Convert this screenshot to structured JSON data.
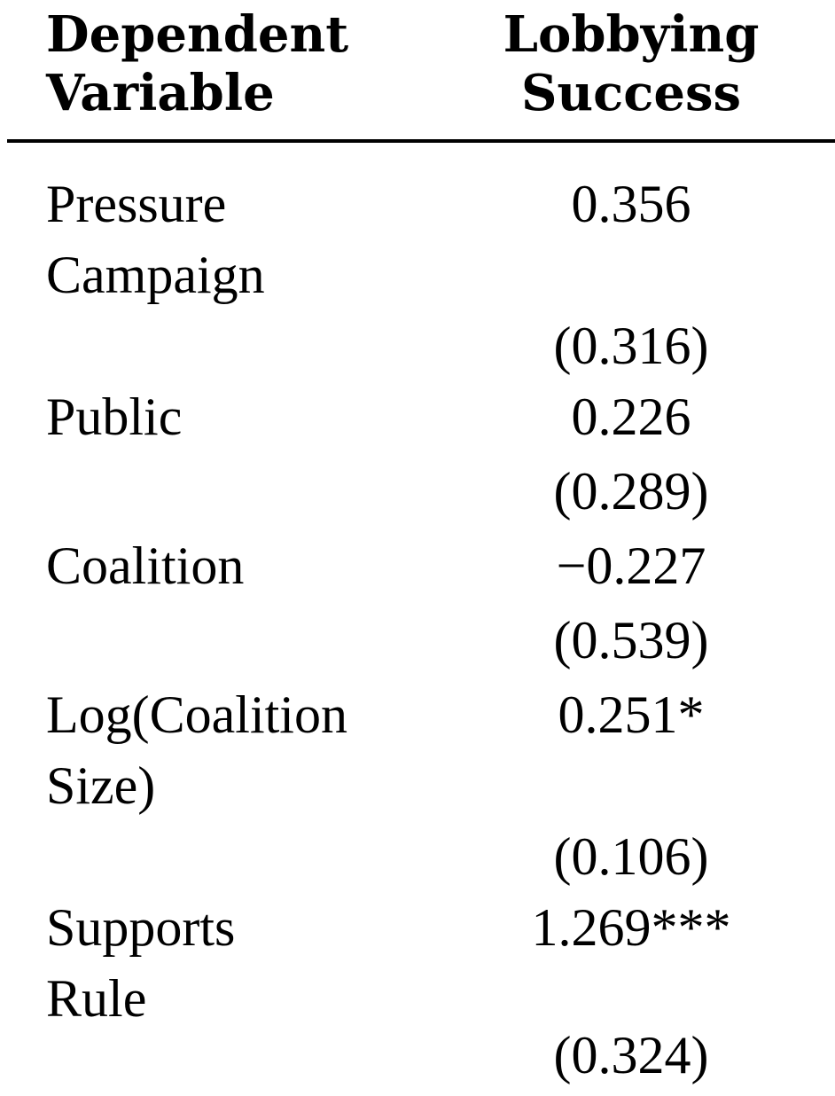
{
  "header": {
    "left_line1": "Dependent",
    "left_line2": "Variable",
    "right_line1": "Lobbying",
    "right_line2": "Success"
  },
  "rows": [
    {
      "label": "Pressure",
      "value": "0.356"
    },
    {
      "label": "Campaign",
      "value": ""
    },
    {
      "label": "",
      "value": "(0.316)"
    },
    {
      "label": "Public",
      "value": "0.226"
    },
    {
      "label": "",
      "value": "(0.289)"
    },
    {
      "label": "Coalition",
      "value": "−0.227"
    },
    {
      "label": "",
      "value": "(0.539)"
    },
    {
      "label": "Log(Coalition",
      "value": "0.251*"
    },
    {
      "label": "Size)",
      "value": ""
    },
    {
      "label": "",
      "value": "(0.106)"
    },
    {
      "label": "Supports",
      "value": "1.269***"
    },
    {
      "label": "Rule",
      "value": ""
    },
    {
      "label": "",
      "value": "(0.324)"
    }
  ]
}
